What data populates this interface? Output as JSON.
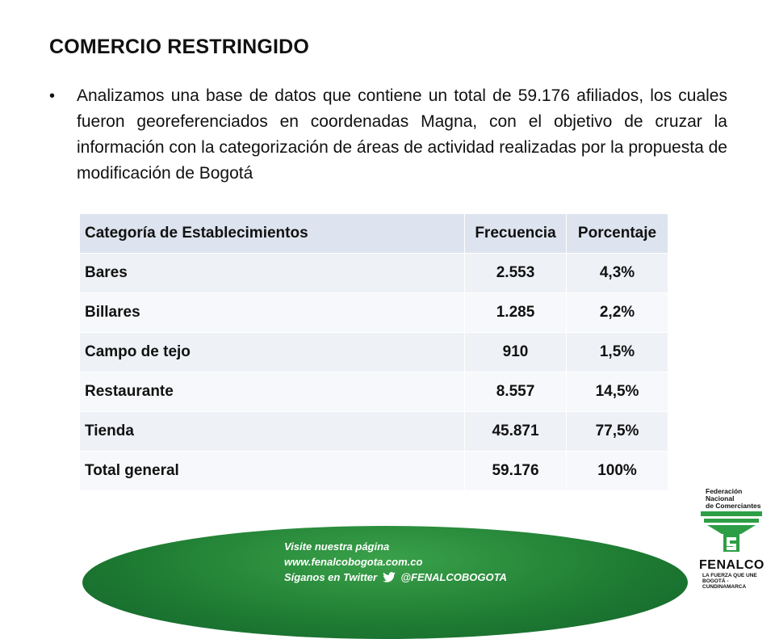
{
  "slide": {
    "title": "COMERCIO RESTRINGIDO",
    "bullet": "Analizamos una base de datos que contiene un total de 59.176 afiliados, los cuales fueron georeferenciados en coordenadas Magna, con el objetivo de cruzar la información con la categorización de áreas de actividad realizadas por la propuesta de modificación de Bogotá"
  },
  "table": {
    "headers": [
      "Categoría de Establecimientos",
      "Frecuencia",
      "Porcentaje"
    ],
    "rows": [
      [
        "Bares",
        "2.553",
        "4,3%"
      ],
      [
        "Billares",
        "1.285",
        "2,2%"
      ],
      [
        "Campo de tejo",
        "910",
        "1,5%"
      ],
      [
        "Restaurante",
        "8.557",
        "14,5%"
      ],
      [
        "Tienda",
        "45.871",
        "77,5%"
      ],
      [
        "Total general",
        "59.176",
        "100%"
      ]
    ]
  },
  "footer": {
    "line1": "Visite nuestra página www.fenalcobogota.com.co",
    "line2_prefix": "Síganos en Twitter",
    "line2_handle": "@FENALCOBOGOTA",
    "banner_color": "#1f7d33"
  },
  "logo": {
    "top_line1": "Federación Nacional",
    "top_line2": "de Comerciantes",
    "name": "FENALCO",
    "slogan_line1": "LA FUERZA QUE UNE",
    "slogan_line2": "BOGOTÁ - CUNDINAMARCA",
    "color": "#2e9e46"
  }
}
